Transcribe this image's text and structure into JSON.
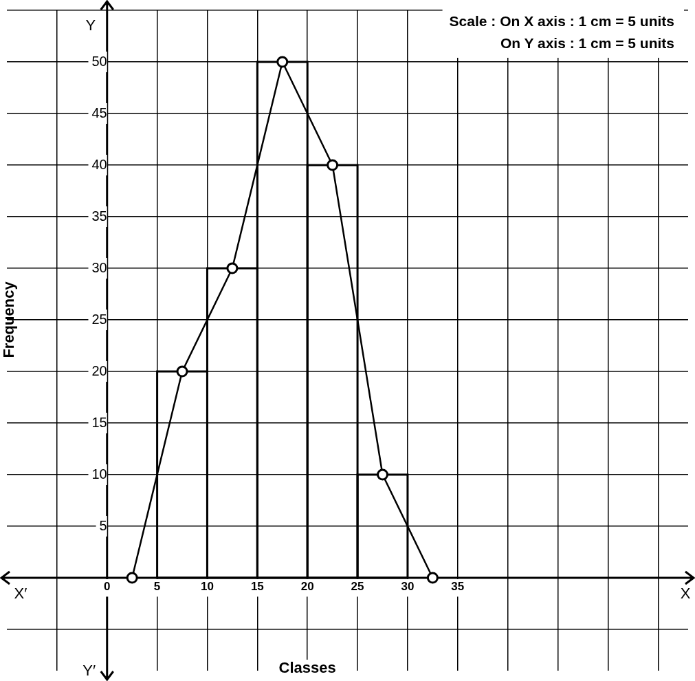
{
  "chart_data": {
    "type": "histogram",
    "xlabel": "Classes",
    "ylabel": "Frequency",
    "series": [
      {
        "color": "#000000",
        "bins": [
          5,
          10,
          15,
          20,
          25,
          30
        ],
        "values": [
          20,
          30,
          50,
          40,
          10
        ]
      },
      {
        "type": "line",
        "color": "#000000",
        "marker": "circle",
        "x": [
          2.5,
          7.5,
          12.5,
          17.5,
          22.5,
          27.5,
          32.5
        ],
        "values": [
          0,
          20,
          30,
          50,
          40,
          10,
          0
        ]
      }
    ],
    "xlim": [
      -10,
      58
    ],
    "ylim": [
      -9,
      55
    ],
    "xticks": [
      {
        "value": -5,
        "label": null
      },
      0,
      5,
      10,
      15,
      20,
      25,
      30,
      35,
      {
        "value": 40,
        "label": null
      },
      {
        "value": 45,
        "label": null
      },
      {
        "value": 50,
        "label": null
      },
      {
        "value": 55,
        "label": null
      }
    ],
    "yticks": [
      {
        "value": -5,
        "label": null
      },
      {
        "value": 0,
        "label": null
      },
      5,
      10,
      15,
      20,
      25,
      30,
      35,
      40,
      45,
      50,
      {
        "value": 55,
        "label": null
      }
    ],
    "grid": true,
    "annotations": [
      "Scale : On X axis : 1 cm = 5 units",
      "On Y axis : 1 cm = 5 units",
      "X′",
      "X",
      "Y",
      "Y′"
    ]
  }
}
